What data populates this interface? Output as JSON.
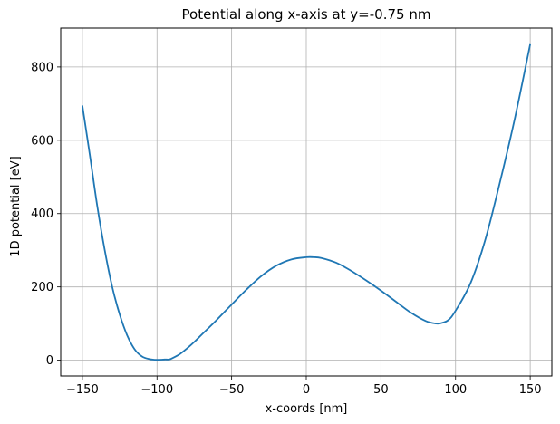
{
  "chart_data": {
    "type": "line",
    "title": "Potential along x-axis at y=-0.75 nm",
    "xlabel": "x-coords [nm]",
    "ylabel": "1D potential [eV]",
    "xlim": [
      -164.5,
      164.5
    ],
    "ylim": [
      -43,
      906
    ],
    "xticks": [
      -150,
      -100,
      -50,
      0,
      50,
      100,
      150
    ],
    "yticks": [
      0,
      200,
      400,
      600,
      800
    ],
    "grid": true,
    "series": [
      {
        "color": "#1f77b4",
        "x": [
          -150,
          -145,
          -140,
          -135,
          -130,
          -125,
          -120,
          -115,
          -110,
          -105,
          -100,
          -95,
          -92,
          -90,
          -85,
          -80,
          -75,
          -70,
          -60,
          -50,
          -40,
          -30,
          -20,
          -10,
          0,
          5,
          10,
          20,
          30,
          40,
          50,
          60,
          70,
          80,
          87,
          90,
          95,
          100,
          110,
          120,
          130,
          140,
          150
        ],
        "y": [
          695,
          560,
          420,
          300,
          200,
          125,
          68,
          30,
          10,
          3,
          1,
          2,
          2,
          5,
          16,
          32,
          50,
          70,
          110,
          152,
          193,
          230,
          258,
          275,
          281,
          281,
          279,
          266,
          244,
          218,
          190,
          160,
          130,
          107,
          100,
          101,
          109,
          135,
          210,
          330,
          490,
          665,
          862
        ]
      }
    ]
  }
}
